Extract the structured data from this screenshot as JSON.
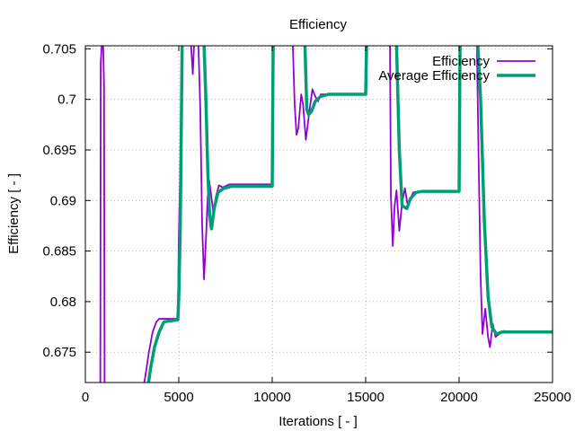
{
  "chart_data": {
    "type": "line",
    "title": "Efficiency",
    "xlabel": "Iterations [ - ]",
    "ylabel": "Efficiency [ - ]",
    "xlim": [
      0,
      25000
    ],
    "ylim": [
      0.672,
      0.7053
    ],
    "x_ticks": [
      0,
      5000,
      10000,
      15000,
      20000,
      25000
    ],
    "x_tick_labels": [
      "0",
      "5000",
      "10000",
      "15000",
      "20000",
      "25000"
    ],
    "y_ticks": [
      0.675,
      0.68,
      0.685,
      0.69,
      0.695,
      0.7,
      0.705
    ],
    "y_tick_labels": [
      "0.675",
      "0.68",
      "0.685",
      "0.69",
      "0.695",
      "0.7",
      "0.705"
    ],
    "grid": true,
    "legend_position": "top-right",
    "series": [
      {
        "name": "Efficiency",
        "color": "#9400d3",
        "line_width": 1.8,
        "points": [
          [
            800,
            0.671
          ],
          [
            820,
            0.7035
          ],
          [
            880,
            0.7055
          ],
          [
            950,
            0.7055
          ],
          [
            1000,
            0.7015
          ],
          [
            1030,
            0.671
          ],
          [
            3050,
            0.671
          ],
          [
            3200,
            0.6725
          ],
          [
            3400,
            0.675
          ],
          [
            3600,
            0.677
          ],
          [
            3800,
            0.678
          ],
          [
            3950,
            0.6783
          ],
          [
            4950,
            0.6783
          ],
          [
            5000,
            0.6865
          ],
          [
            5100,
            0.6945
          ],
          [
            5180,
            0.7055
          ],
          [
            5650,
            0.7055
          ],
          [
            5750,
            0.7025
          ],
          [
            5820,
            0.7055
          ],
          [
            6050,
            0.7055
          ],
          [
            6150,
            0.699
          ],
          [
            6250,
            0.6875
          ],
          [
            6350,
            0.6822
          ],
          [
            6450,
            0.686
          ],
          [
            6550,
            0.6905
          ],
          [
            6620,
            0.692
          ],
          [
            6700,
            0.691
          ],
          [
            6850,
            0.6888
          ],
          [
            7000,
            0.6905
          ],
          [
            7150,
            0.6915
          ],
          [
            7350,
            0.6913
          ],
          [
            7700,
            0.6916
          ],
          [
            10000,
            0.6916
          ],
          [
            10030,
            0.7005
          ],
          [
            10050,
            0.7055
          ],
          [
            10950,
            0.7055
          ],
          [
            11100,
            0.7055
          ],
          [
            11200,
            0.6995
          ],
          [
            11300,
            0.6965
          ],
          [
            11400,
            0.6972
          ],
          [
            11550,
            0.7005
          ],
          [
            11650,
            0.6995
          ],
          [
            11800,
            0.696
          ],
          [
            11900,
            0.6975
          ],
          [
            12000,
            0.699
          ],
          [
            12150,
            0.701
          ],
          [
            12300,
            0.7003
          ],
          [
            12450,
            0.6998
          ],
          [
            12600,
            0.7005
          ],
          [
            12900,
            0.7005
          ],
          [
            15000,
            0.7005
          ],
          [
            15040,
            0.7055
          ],
          [
            16300,
            0.7055
          ],
          [
            16350,
            0.6905
          ],
          [
            16450,
            0.6855
          ],
          [
            16550,
            0.6895
          ],
          [
            16650,
            0.691
          ],
          [
            16800,
            0.687
          ],
          [
            16950,
            0.6898
          ],
          [
            17100,
            0.6912
          ],
          [
            17250,
            0.6895
          ],
          [
            17400,
            0.6902
          ],
          [
            17550,
            0.6908
          ],
          [
            17800,
            0.6909
          ],
          [
            20000,
            0.6909
          ],
          [
            20040,
            0.7055
          ],
          [
            20950,
            0.7055
          ],
          [
            21050,
            0.6935
          ],
          [
            21150,
            0.6825
          ],
          [
            21250,
            0.6768
          ],
          [
            21400,
            0.6793
          ],
          [
            21550,
            0.6765
          ],
          [
            21650,
            0.6755
          ],
          [
            21800,
            0.6778
          ],
          [
            21950,
            0.6765
          ],
          [
            22150,
            0.6768
          ],
          [
            22400,
            0.6771
          ],
          [
            22700,
            0.677
          ],
          [
            25000,
            0.677
          ]
        ]
      },
      {
        "name": "Average Efficiency",
        "color": "#009e73",
        "line_width": 3.5,
        "points": [
          [
            3300,
            0.671
          ],
          [
            3500,
            0.6735
          ],
          [
            3700,
            0.6755
          ],
          [
            3950,
            0.677
          ],
          [
            4200,
            0.678
          ],
          [
            4950,
            0.6782
          ],
          [
            5000,
            0.6805
          ],
          [
            5080,
            0.6875
          ],
          [
            5180,
            0.7055
          ],
          [
            6350,
            0.7055
          ],
          [
            6450,
            0.7
          ],
          [
            6550,
            0.693
          ],
          [
            6650,
            0.6885
          ],
          [
            6750,
            0.6872
          ],
          [
            6900,
            0.6893
          ],
          [
            7100,
            0.6908
          ],
          [
            7400,
            0.6912
          ],
          [
            7800,
            0.6914
          ],
          [
            10000,
            0.6914
          ],
          [
            10050,
            0.7055
          ],
          [
            11750,
            0.7055
          ],
          [
            11850,
            0.699
          ],
          [
            11950,
            0.6985
          ],
          [
            12100,
            0.6988
          ],
          [
            12300,
            0.6998
          ],
          [
            12600,
            0.7003
          ],
          [
            13000,
            0.7005
          ],
          [
            15000,
            0.7005
          ],
          [
            15050,
            0.7055
          ],
          [
            16650,
            0.7055
          ],
          [
            16800,
            0.695
          ],
          [
            16950,
            0.6895
          ],
          [
            17200,
            0.6892
          ],
          [
            17400,
            0.6902
          ],
          [
            17700,
            0.6908
          ],
          [
            18000,
            0.6909
          ],
          [
            20000,
            0.6909
          ],
          [
            20050,
            0.7055
          ],
          [
            21000,
            0.7055
          ],
          [
            21150,
            0.7
          ],
          [
            21350,
            0.688
          ],
          [
            21550,
            0.6805
          ],
          [
            21750,
            0.6775
          ],
          [
            22000,
            0.6768
          ],
          [
            22300,
            0.677
          ],
          [
            25000,
            0.677
          ]
        ]
      }
    ]
  }
}
